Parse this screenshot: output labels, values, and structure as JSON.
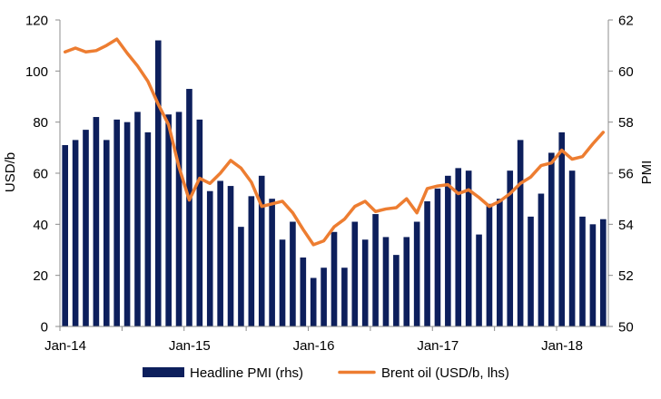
{
  "chart_data": {
    "type": "bar+line",
    "ylabel_left": "USD/b",
    "ylabel_right": "PMI",
    "ylim_left": [
      0,
      120
    ],
    "yticks_left": [
      "0",
      "20",
      "40",
      "60",
      "80",
      "100",
      "120"
    ],
    "ylim_right": [
      50,
      62
    ],
    "yticks_right": [
      "50",
      "52",
      "54",
      "56",
      "58",
      "60",
      "62"
    ],
    "x_tick_labels": [
      "Jan-14",
      "Jan-15",
      "Jan-16",
      "Jan-17",
      "Jan-18"
    ],
    "x_tick_indices": [
      0,
      12,
      24,
      36,
      48
    ],
    "months": [
      "2014-01",
      "2014-02",
      "2014-03",
      "2014-04",
      "2014-05",
      "2014-06",
      "2014-07",
      "2014-08",
      "2014-09",
      "2014-10",
      "2014-11",
      "2014-12",
      "2015-01",
      "2015-02",
      "2015-03",
      "2015-04",
      "2015-05",
      "2015-06",
      "2015-07",
      "2015-08",
      "2015-09",
      "2015-10",
      "2015-11",
      "2015-12",
      "2016-01",
      "2016-02",
      "2016-03",
      "2016-04",
      "2016-05",
      "2016-06",
      "2016-07",
      "2016-08",
      "2016-09",
      "2016-10",
      "2016-11",
      "2016-12",
      "2017-01",
      "2017-02",
      "2017-03",
      "2017-04",
      "2017-05",
      "2017-06",
      "2017-07",
      "2017-08",
      "2017-09",
      "2017-10",
      "2017-11",
      "2017-12",
      "2018-01",
      "2018-02",
      "2018-03",
      "2018-04",
      "2018-05"
    ],
    "series": [
      {
        "name": "Headline PMI (rhs)",
        "type": "bar",
        "axis": "right",
        "color": "#0d1f5c",
        "values": [
          57.1,
          57.3,
          57.7,
          58.2,
          57.3,
          58.1,
          58.0,
          58.4,
          57.6,
          61.2,
          58.3,
          58.4,
          59.3,
          58.1,
          55.3,
          55.7,
          55.5,
          53.9,
          55.1,
          55.9,
          55.0,
          53.4,
          54.1,
          52.7,
          51.9,
          52.3,
          53.7,
          52.3,
          54.1,
          53.4,
          54.4,
          53.5,
          52.8,
          53.5,
          54.1,
          54.9,
          55.4,
          55.9,
          56.2,
          56.1,
          53.6,
          54.8,
          55.0,
          56.1,
          57.3,
          54.3,
          55.2,
          56.8,
          57.6,
          56.1,
          54.3,
          54.0,
          54.2
        ]
      },
      {
        "name": "Brent oil (USD/b, lhs)",
        "type": "line",
        "axis": "left",
        "color": "#ed7d31",
        "values": [
          107.5,
          109.0,
          107.5,
          108.0,
          110.0,
          112.5,
          107.0,
          102.0,
          96.0,
          87.0,
          79.0,
          62.5,
          49.5,
          58.0,
          56.0,
          60.0,
          65.0,
          62.0,
          56.5,
          47.0,
          48.0,
          49.0,
          44.5,
          38.0,
          32.0,
          33.5,
          39.0,
          42.0,
          47.0,
          49.0,
          45.0,
          46.0,
          46.5,
          50.0,
          44.5,
          54.0,
          55.0,
          55.5,
          52.0,
          53.5,
          50.5,
          47.0,
          49.0,
          52.0,
          56.0,
          58.5,
          63.0,
          64.0,
          69.0,
          65.5,
          66.5,
          71.5,
          76.0
        ]
      }
    ],
    "legend_position": "bottom",
    "grid": false
  }
}
